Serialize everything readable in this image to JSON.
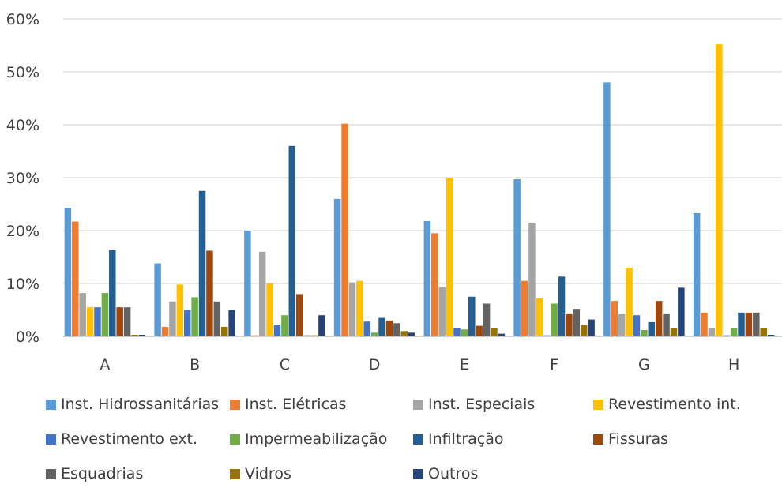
{
  "chart_data": {
    "type": "bar",
    "title": "",
    "xlabel": "",
    "ylabel": "",
    "ylim": [
      0,
      60
    ],
    "y_ticks": [
      "0%",
      "10%",
      "20%",
      "30%",
      "40%",
      "50%",
      "60%"
    ],
    "grid": true,
    "legend_position": "bottom",
    "categories": [
      "A",
      "B",
      "C",
      "D",
      "E",
      "F",
      "G",
      "H"
    ],
    "series": [
      {
        "name": "Inst. Hidrossanitárias",
        "color": "#5B9BD5",
        "values": [
          24.3,
          13.8,
          20.0,
          26.0,
          21.8,
          29.7,
          48.0,
          23.3
        ]
      },
      {
        "name": "Inst. Elétricas",
        "color": "#ED7D31",
        "values": [
          21.7,
          1.8,
          0.2,
          40.2,
          19.5,
          10.5,
          6.7,
          4.5
        ]
      },
      {
        "name": "Inst. Especiais",
        "color": "#A5A5A5",
        "values": [
          8.2,
          6.6,
          16.0,
          10.2,
          9.3,
          21.5,
          4.2,
          1.5
        ]
      },
      {
        "name": "Revestimento int.",
        "color": "#FFC000",
        "values": [
          5.5,
          9.8,
          10.0,
          10.5,
          30.0,
          7.2,
          13.0,
          55.2
        ]
      },
      {
        "name": "Revestimento ext.",
        "color": "#4472C4",
        "values": [
          5.5,
          5.0,
          2.2,
          2.8,
          1.5,
          0.2,
          4.0,
          0.2
        ]
      },
      {
        "name": "Impermeabilização",
        "color": "#70AD47",
        "values": [
          8.2,
          7.4,
          4.0,
          0.7,
          1.3,
          6.2,
          1.2,
          1.5
        ]
      },
      {
        "name": "Infiltração",
        "color": "#255E91",
        "values": [
          16.3,
          27.5,
          36.0,
          3.5,
          7.5,
          11.3,
          2.7,
          4.5
        ]
      },
      {
        "name": "Fissuras",
        "color": "#9E480E",
        "values": [
          5.5,
          16.2,
          8.0,
          3.0,
          2.0,
          4.2,
          6.7,
          4.5
        ]
      },
      {
        "name": "Esquadrias",
        "color": "#636363",
        "values": [
          5.5,
          6.6,
          0.2,
          2.5,
          6.2,
          5.2,
          4.2,
          4.5
        ]
      },
      {
        "name": "Vidros",
        "color": "#997300",
        "values": [
          0.3,
          1.8,
          0.2,
          1.0,
          1.5,
          2.2,
          1.5,
          1.5
        ]
      },
      {
        "name": "Outros",
        "color": "#264478",
        "values": [
          0.3,
          5.0,
          4.0,
          0.7,
          0.5,
          3.2,
          9.2,
          0.3
        ]
      }
    ]
  }
}
